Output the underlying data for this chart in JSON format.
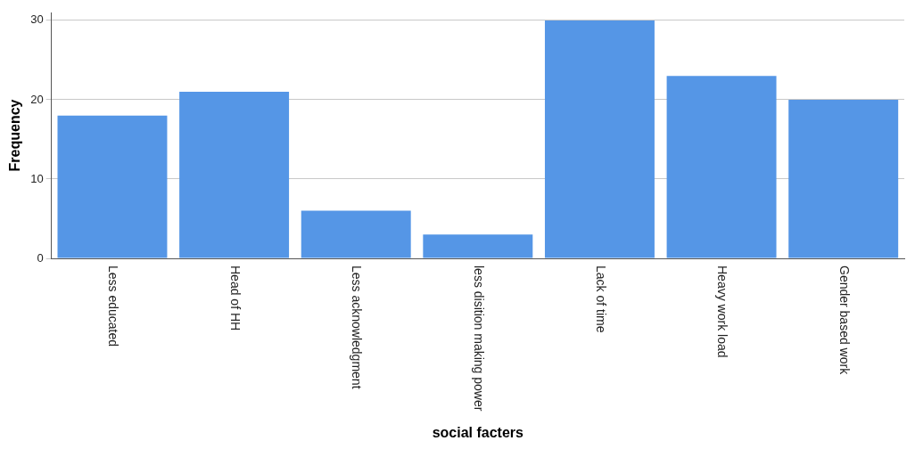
{
  "chart_data": {
    "type": "bar",
    "xlabel": "social facters",
    "ylabel": "Frequency",
    "categories": [
      "Less educated",
      "Head of HH",
      "Less acknowledgment",
      "less disition making power",
      "Lack of time",
      "Heavy work load",
      "Gender based work"
    ],
    "values": [
      18,
      21,
      6,
      3,
      30,
      23,
      20
    ],
    "color": "#5596e6",
    "ylim": [
      0,
      31
    ],
    "yticks": [
      0,
      10,
      20,
      30
    ],
    "grid": "y",
    "legend": false
  }
}
